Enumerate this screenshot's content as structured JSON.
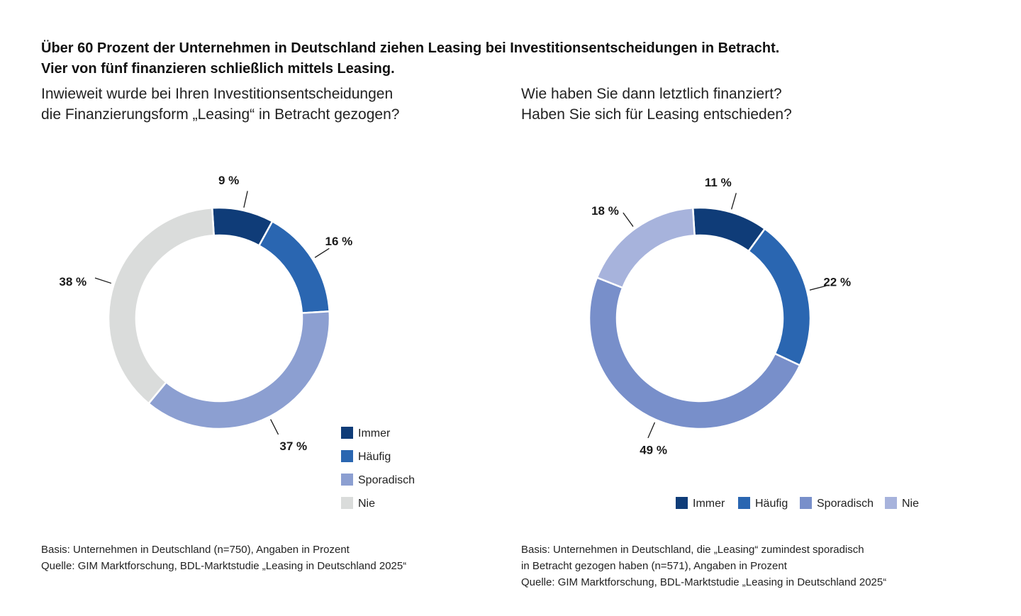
{
  "headline": {
    "line1": "Über 60 Prozent der Unternehmen in Deutschland ziehen Leasing bei Investitionsentscheidungen in Betracht.",
    "line2": "Vier von fünf finanzieren schließlich mittels Leasing."
  },
  "left": {
    "question_line1": "Inwieweit wurde bei Ihren Investitionsentscheidungen",
    "question_line2": "die Finanzierungsform „Leasing“ in Betracht gezogen?",
    "footer_lines": [
      "Basis: Unternehmen in Deutschland (n=750), Angaben in Prozent",
      "Quelle: GIM Marktforschung, BDL-Marktstudie „Leasing in Deutschland 2025“"
    ]
  },
  "right": {
    "question_line1": "Wie haben Sie dann letztlich finanziert?",
    "question_line2": "Haben Sie sich für Leasing entschieden?",
    "footer_lines": [
      "Basis: Unternehmen in Deutschland, die „Leasing“ zumindest sporadisch",
      "in Betracht gezogen haben (n=571), Angaben in Prozent",
      "Quelle: GIM Marktforschung, BDL-Marktstudie „Leasing in Deutschland 2025“"
    ]
  },
  "chart_data": [
    {
      "type": "pie",
      "donut": true,
      "categories": [
        "Immer",
        "Häufig",
        "Sporadisch",
        "Nie"
      ],
      "values": [
        9,
        16,
        37,
        38
      ],
      "labels": [
        "9 %",
        "16 %",
        "37 %",
        "38 %"
      ],
      "colors": [
        "#0f3c78",
        "#2a66b1",
        "#8c9fd1",
        "#dadcdb"
      ],
      "legend": {
        "placement": "bottom-right",
        "orientation": "vertical",
        "entries": [
          "Immer",
          "Häufig",
          "Sporadisch",
          "Nie"
        ]
      }
    },
    {
      "type": "pie",
      "donut": true,
      "categories": [
        "Immer",
        "Häufig",
        "Sporadisch",
        "Nie"
      ],
      "values": [
        11,
        22,
        49,
        18
      ],
      "labels": [
        "11 %",
        "22 %",
        "49 %",
        "18 %"
      ],
      "colors": [
        "#0f3c78",
        "#2a66b1",
        "#788fca",
        "#a7b3dc"
      ],
      "legend": {
        "placement": "bottom",
        "orientation": "horizontal",
        "entries": [
          "Immer",
          "Häufig",
          "Sporadisch",
          "Nie"
        ]
      }
    }
  ]
}
